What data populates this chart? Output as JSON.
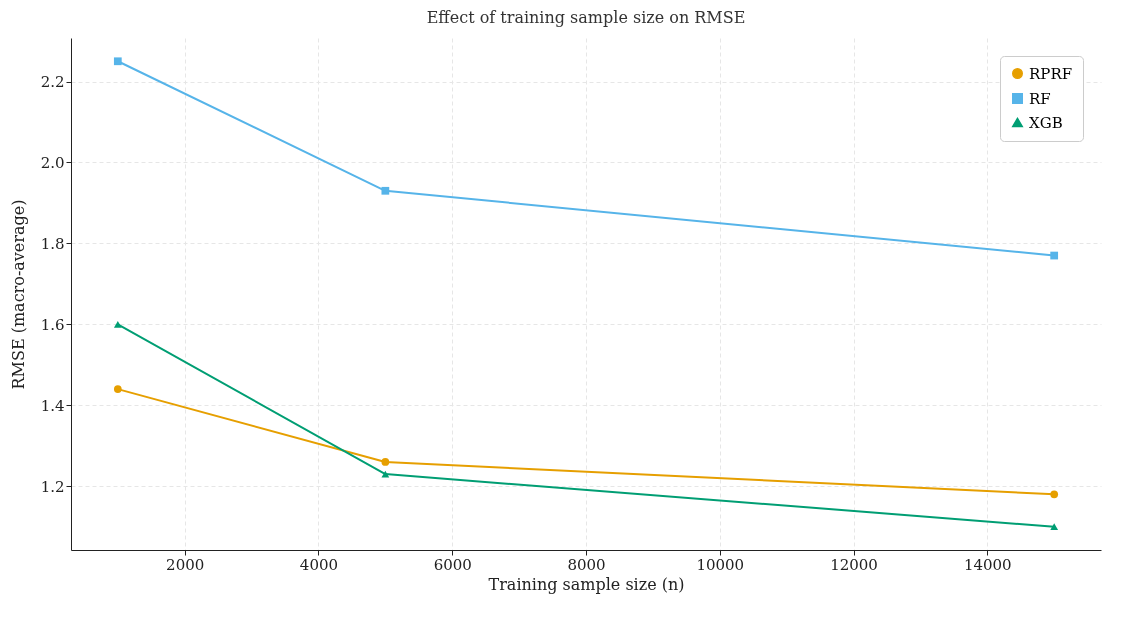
{
  "chart_data": {
    "type": "line",
    "title": "Effect of training sample size on RMSE",
    "xlabel": "Training sample size (n)",
    "ylabel": "RMSE (macro-average)",
    "x": [
      1000,
      5000,
      15000
    ],
    "series": [
      {
        "name": "RPRF",
        "color": "#e69f00",
        "marker": "circle",
        "values": [
          1.44,
          1.26,
          1.18
        ]
      },
      {
        "name": "RF",
        "color": "#56b4e9",
        "marker": "square",
        "values": [
          2.25,
          1.93,
          1.77
        ]
      },
      {
        "name": "XGB",
        "color": "#009e73",
        "marker": "triangle",
        "values": [
          1.6,
          1.23,
          1.1
        ]
      }
    ],
    "xlim": [
      300,
      15700
    ],
    "xticks": [
      2000,
      4000,
      6000,
      8000,
      10000,
      12000,
      14000
    ],
    "ylim": [
      1.0425,
      2.3075
    ],
    "yticks": [
      1.2,
      1.4,
      1.6,
      1.8,
      {
        "value": 2,
        "label": "2.0"
      },
      2.2
    ],
    "grid": true,
    "legend": "top right",
    "line_style": "solid"
  }
}
